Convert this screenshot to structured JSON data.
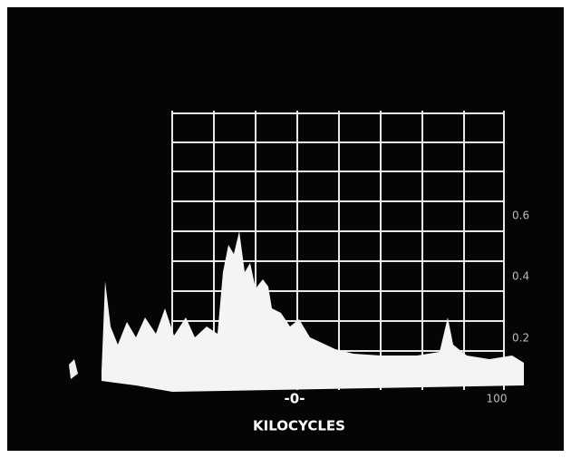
{
  "scale_labels": [
    "0.6",
    "0.4",
    "0.2"
  ],
  "center_label": "-0-",
  "end_label": "100",
  "axis_title": "KILOCYCLES"
}
